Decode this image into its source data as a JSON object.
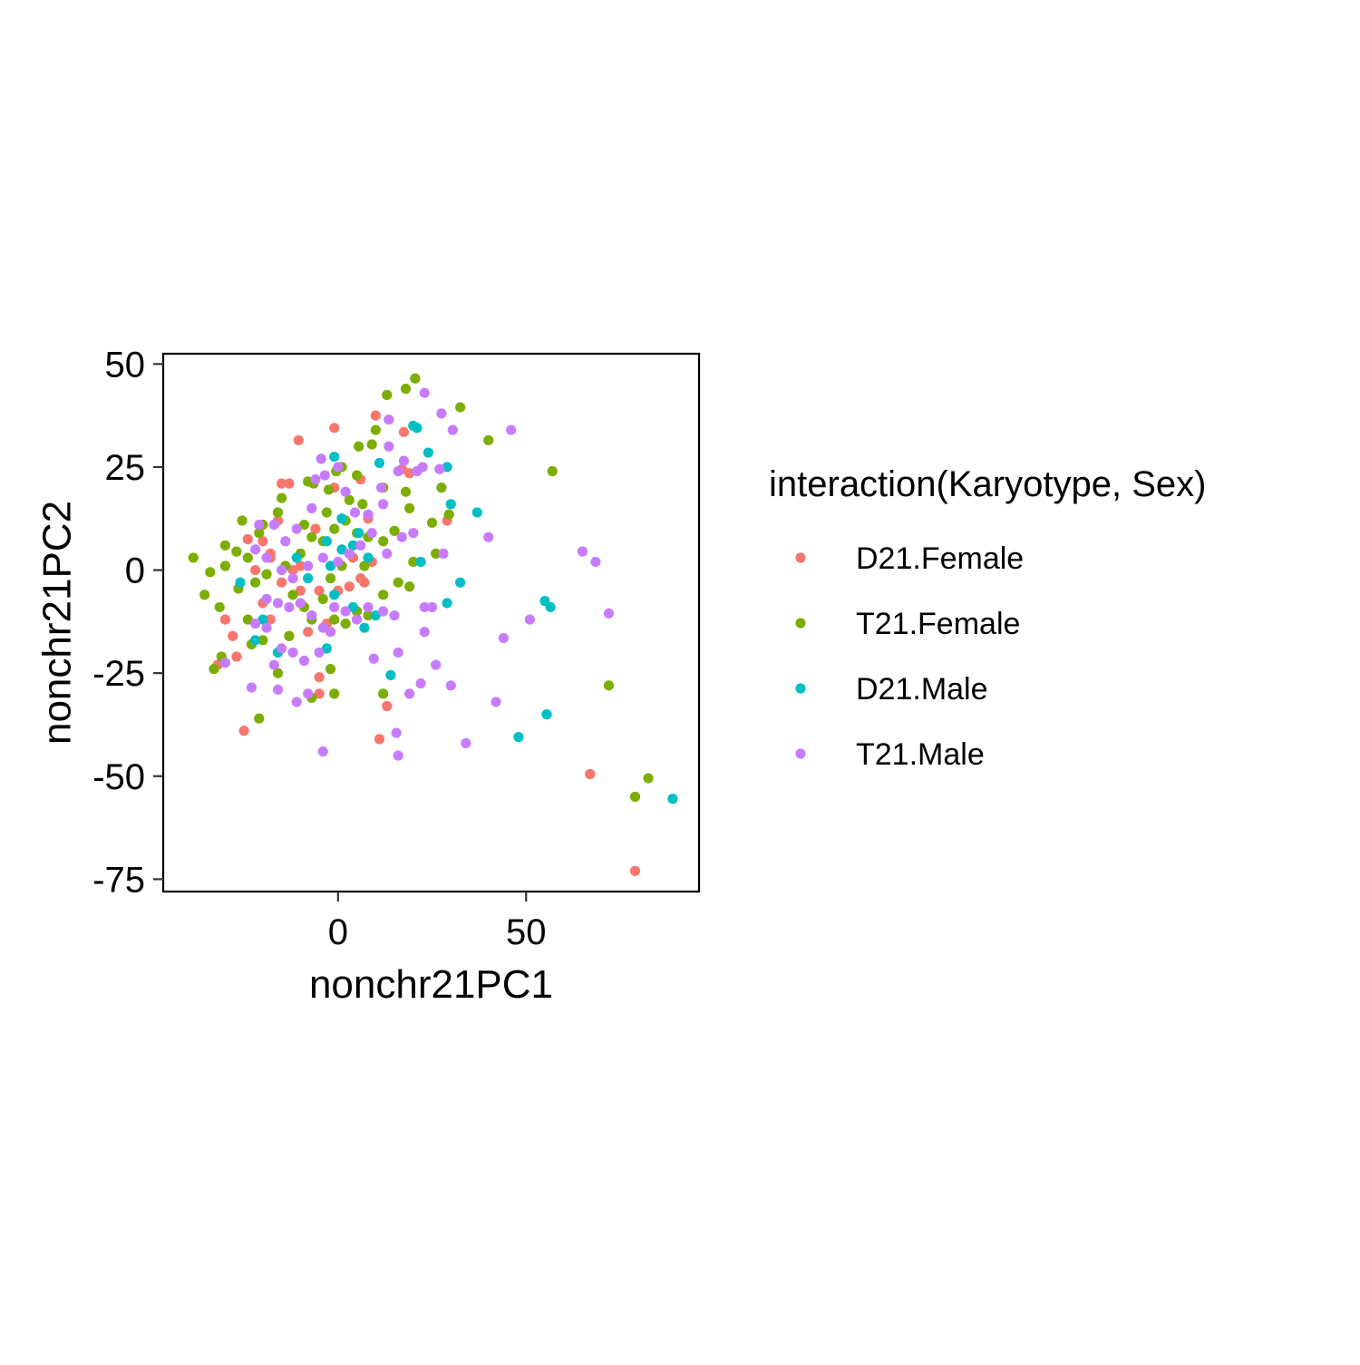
{
  "chart_data": {
    "type": "scatter",
    "xlabel": "nonchr21PC1",
    "ylabel": "nonchr21PC2",
    "xlim": [
      -46.5,
      96
    ],
    "ylim": [
      -78,
      52.5
    ],
    "xticks": [
      0,
      50
    ],
    "yticks": [
      50,
      25,
      0,
      -25,
      -50,
      -75
    ],
    "grid": false,
    "legend": {
      "title": "interaction(Karyotype, Sex)",
      "placement": "right"
    },
    "series": [
      {
        "name": "D21.Female",
        "color": "#F8766D",
        "points": [
          [
            -1,
            34.5
          ],
          [
            -10.5,
            31.5
          ],
          [
            10,
            37.5
          ],
          [
            17.5,
            33.5
          ],
          [
            -15,
            21
          ],
          [
            -13,
            21
          ],
          [
            6,
            22
          ],
          [
            17,
            24.5
          ],
          [
            19,
            23.5
          ],
          [
            29,
            12
          ],
          [
            8,
            12.5
          ],
          [
            -20,
            7
          ],
          [
            -24,
            7.5
          ],
          [
            -18,
            4
          ],
          [
            -22,
            0
          ],
          [
            -15,
            -3
          ],
          [
            -10,
            -5
          ],
          [
            -5,
            -5
          ],
          [
            0,
            -5
          ],
          [
            3,
            -4
          ],
          [
            6,
            -2
          ],
          [
            7,
            -3
          ],
          [
            9,
            2
          ],
          [
            -12,
            0
          ],
          [
            -20,
            -8
          ],
          [
            -18,
            -12
          ],
          [
            -30,
            -12
          ],
          [
            -28,
            -16
          ],
          [
            -13,
            -16
          ],
          [
            -8,
            -15
          ],
          [
            -5,
            -30
          ],
          [
            -5,
            -26
          ],
          [
            -27,
            -21
          ],
          [
            -32,
            -23
          ],
          [
            -25,
            -39
          ],
          [
            13,
            -33
          ],
          [
            11,
            -41
          ],
          [
            67,
            -49.5
          ],
          [
            79,
            -73
          ],
          [
            -1,
            20
          ],
          [
            -6,
            10
          ],
          [
            -16,
            12
          ],
          [
            1,
            5
          ],
          [
            4,
            3
          ],
          [
            -3,
            -13
          ],
          [
            -18,
            3
          ],
          [
            -10,
            1
          ]
        ]
      },
      {
        "name": "T21.Female",
        "color": "#7CAE00",
        "points": [
          [
            20.5,
            46.5
          ],
          [
            18,
            44
          ],
          [
            13,
            42.5
          ],
          [
            32.5,
            39.5
          ],
          [
            40,
            31.5
          ],
          [
            9,
            30.5
          ],
          [
            5.5,
            30
          ],
          [
            10,
            34
          ],
          [
            -0.5,
            24
          ],
          [
            1,
            25
          ],
          [
            -8,
            21.5
          ],
          [
            -6.5,
            21
          ],
          [
            -2.5,
            19.5
          ],
          [
            5,
            23
          ],
          [
            6.5,
            16
          ],
          [
            12,
            20
          ],
          [
            18,
            19
          ],
          [
            27.5,
            20
          ],
          [
            19,
            15
          ],
          [
            29.5,
            13.5
          ],
          [
            25,
            11.5
          ],
          [
            57,
            24
          ],
          [
            -15,
            17.5
          ],
          [
            -16,
            14
          ],
          [
            -20,
            11
          ],
          [
            -21,
            9
          ],
          [
            -25.5,
            12
          ],
          [
            -30,
            6
          ],
          [
            -38.5,
            3
          ],
          [
            -34,
            -0.5
          ],
          [
            -35.5,
            -6
          ],
          [
            -31.5,
            -9
          ],
          [
            -30,
            1
          ],
          [
            -27,
            4.5
          ],
          [
            -24,
            3
          ],
          [
            -22,
            -3
          ],
          [
            -19,
            -1
          ],
          [
            -14,
            1
          ],
          [
            -10,
            4
          ],
          [
            -7,
            8
          ],
          [
            -4,
            7
          ],
          [
            -1,
            10
          ],
          [
            2,
            12
          ],
          [
            5,
            9
          ],
          [
            8,
            8
          ],
          [
            12,
            7
          ],
          [
            15,
            9.5
          ],
          [
            -26.5,
            -4.5
          ],
          [
            -24,
            -12
          ],
          [
            -23,
            -18
          ],
          [
            -20,
            -17
          ],
          [
            -16,
            -20
          ],
          [
            -16,
            -25
          ],
          [
            -13,
            -16
          ],
          [
            -9,
            -9
          ],
          [
            -7,
            -12
          ],
          [
            -4,
            -7
          ],
          [
            -1,
            -12
          ],
          [
            2,
            -13
          ],
          [
            5,
            -10
          ],
          [
            8,
            -11
          ],
          [
            12,
            -6
          ],
          [
            16,
            -3
          ],
          [
            20,
            2
          ],
          [
            26,
            4
          ],
          [
            -31,
            -21
          ],
          [
            -33,
            -24
          ],
          [
            -21,
            -36
          ],
          [
            -7,
            -31
          ],
          [
            -1,
            -30
          ],
          [
            -2,
            -24
          ],
          [
            12,
            -30
          ],
          [
            19,
            -4
          ],
          [
            72,
            -28
          ],
          [
            79,
            -55
          ],
          [
            82.5,
            -50.5
          ],
          [
            3,
            17
          ],
          [
            -3,
            14
          ],
          [
            -9,
            11
          ],
          [
            1,
            1
          ],
          [
            -2,
            -2
          ],
          [
            -12,
            -6
          ],
          [
            7,
            1
          ]
        ]
      },
      {
        "name": "D21.Male",
        "color": "#00BFC4",
        "points": [
          [
            20,
            35
          ],
          [
            21,
            34.5
          ],
          [
            24,
            28.5
          ],
          [
            29,
            25
          ],
          [
            30,
            16
          ],
          [
            37,
            14
          ],
          [
            1,
            12.5
          ],
          [
            11,
            26
          ],
          [
            5.5,
            9
          ],
          [
            -1,
            27.5
          ],
          [
            8,
            3
          ],
          [
            -3,
            7
          ],
          [
            1,
            5
          ],
          [
            -2,
            1
          ],
          [
            -1,
            -6
          ],
          [
            4,
            -9
          ],
          [
            7,
            -14
          ],
          [
            10,
            -11
          ],
          [
            14,
            -25.5
          ],
          [
            -3,
            -19
          ],
          [
            -11,
            3
          ],
          [
            -16,
            -20
          ],
          [
            -22,
            -17
          ],
          [
            -20,
            -12
          ],
          [
            -26,
            -3
          ],
          [
            22,
            2
          ],
          [
            29,
            -8
          ],
          [
            32.5,
            -3
          ],
          [
            48,
            -40.5
          ],
          [
            55,
            -7.5
          ],
          [
            56.5,
            -9
          ],
          [
            55.5,
            -35
          ],
          [
            89,
            -55.5
          ],
          [
            4,
            6
          ],
          [
            -8,
            -2
          ]
        ]
      },
      {
        "name": "T21.Male",
        "color": "#C77CFF",
        "points": [
          [
            23,
            43
          ],
          [
            27.5,
            38
          ],
          [
            13.5,
            36.5
          ],
          [
            30.5,
            34
          ],
          [
            46,
            34
          ],
          [
            13.5,
            30
          ],
          [
            17.5,
            26.5
          ],
          [
            22.5,
            25
          ],
          [
            27,
            24.5
          ],
          [
            -4.5,
            27
          ],
          [
            -3.5,
            23
          ],
          [
            -6,
            22
          ],
          [
            0,
            25
          ],
          [
            2,
            19
          ],
          [
            4.5,
            14
          ],
          [
            8,
            13.5
          ],
          [
            11.5,
            20
          ],
          [
            12,
            16
          ],
          [
            -7,
            15
          ],
          [
            -11,
            10
          ],
          [
            -14,
            7
          ],
          [
            -17,
            11
          ],
          [
            -21,
            11
          ],
          [
            -22,
            5
          ],
          [
            -19,
            3
          ],
          [
            -15,
            0
          ],
          [
            -12,
            -2
          ],
          [
            -8,
            1
          ],
          [
            -4,
            3
          ],
          [
            0,
            2
          ],
          [
            3,
            4
          ],
          [
            6,
            6
          ],
          [
            9,
            9
          ],
          [
            13,
            4
          ],
          [
            17,
            8
          ],
          [
            20,
            9
          ],
          [
            -19,
            -7
          ],
          [
            -16,
            -8
          ],
          [
            -13,
            -9
          ],
          [
            -10,
            -8
          ],
          [
            -7,
            -11
          ],
          [
            -4,
            -14
          ],
          [
            -1,
            -9
          ],
          [
            2,
            -10
          ],
          [
            5,
            -12
          ],
          [
            8,
            -9
          ],
          [
            12,
            -10
          ],
          [
            15,
            -11
          ],
          [
            -22,
            -13
          ],
          [
            -19,
            -14
          ],
          [
            -15,
            -19
          ],
          [
            -12,
            -20
          ],
          [
            -9,
            -22
          ],
          [
            -5,
            -20
          ],
          [
            -2,
            -15
          ],
          [
            23,
            -9
          ],
          [
            25,
            -9
          ],
          [
            23,
            -15
          ],
          [
            26,
            -23
          ],
          [
            30,
            -28
          ],
          [
            22,
            -27.5
          ],
          [
            19,
            -30
          ],
          [
            16,
            -20
          ],
          [
            9.5,
            -21.5
          ],
          [
            -16,
            -29
          ],
          [
            -23,
            -28.5
          ],
          [
            -17,
            -23
          ],
          [
            -11,
            -32
          ],
          [
            -4,
            -44
          ],
          [
            15.5,
            -39.5
          ],
          [
            16,
            -45
          ],
          [
            34,
            -42
          ],
          [
            42,
            -32
          ],
          [
            44,
            -16.5
          ],
          [
            51,
            -12
          ],
          [
            40,
            8
          ],
          [
            65,
            4.5
          ],
          [
            68.5,
            2
          ],
          [
            72,
            -10.5
          ],
          [
            -30,
            -22.5
          ],
          [
            -8,
            -30
          ],
          [
            16,
            24
          ],
          [
            21,
            24
          ],
          [
            28,
            4
          ]
        ]
      }
    ]
  }
}
